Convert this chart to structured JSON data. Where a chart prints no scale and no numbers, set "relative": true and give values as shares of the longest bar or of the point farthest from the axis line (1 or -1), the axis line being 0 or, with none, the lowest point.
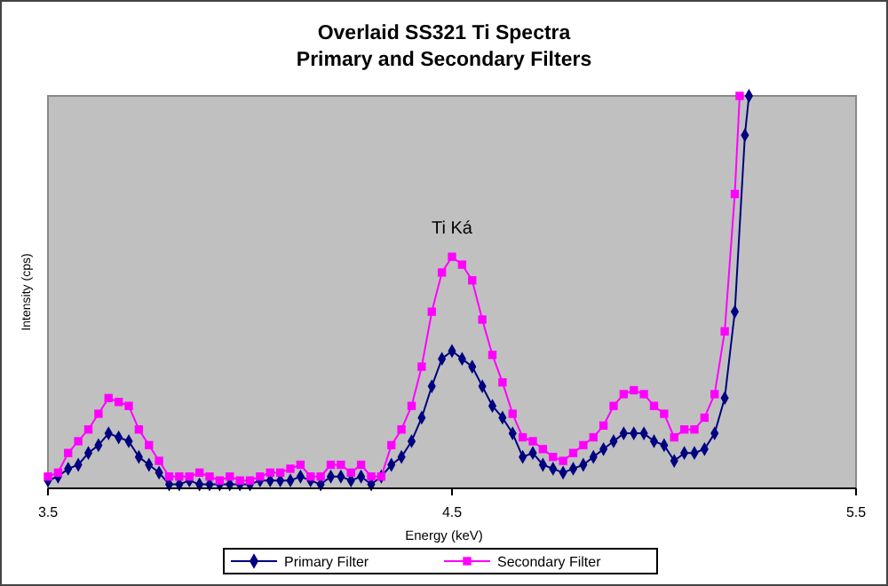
{
  "chart_data": {
    "type": "line",
    "title": "Overlaid SS321 Ti Spectra",
    "subtitle": "Primary and Secondary Filters",
    "xlabel": "Energy (keV)",
    "ylabel": "Intensity (cps)",
    "relative": true,
    "xlim": [
      3.5,
      5.5
    ],
    "xticks": [
      3.5,
      4.5,
      5.5
    ],
    "legend": "bottom",
    "line_style": "solid",
    "annotations": [
      "Ti Ká"
    ],
    "series": [
      {
        "name": "Primary Filter",
        "color": "#000080",
        "marker": "diamond",
        "x": [
          3.5,
          3.525,
          3.55,
          3.575,
          3.6,
          3.625,
          3.65,
          3.675,
          3.7,
          3.725,
          3.75,
          3.775,
          3.8,
          3.825,
          3.85,
          3.875,
          3.9,
          3.925,
          3.95,
          3.975,
          4.0,
          4.025,
          4.05,
          4.075,
          4.1,
          4.125,
          4.15,
          4.175,
          4.2,
          4.225,
          4.25,
          4.275,
          4.3,
          4.325,
          4.35,
          4.375,
          4.4,
          4.425,
          4.45,
          4.475,
          4.5,
          4.525,
          4.55,
          4.575,
          4.6,
          4.625,
          4.65,
          4.675,
          4.7,
          4.725,
          4.75,
          4.775,
          4.8,
          4.825,
          4.85,
          4.875,
          4.9,
          4.925,
          4.95,
          4.975,
          5.0,
          5.025,
          5.05,
          5.075,
          5.1,
          5.125,
          5.15,
          5.175,
          5.2,
          5.225,
          5.235
        ],
        "values": [
          0.02,
          0.03,
          0.05,
          0.06,
          0.09,
          0.11,
          0.14,
          0.13,
          0.12,
          0.08,
          0.06,
          0.04,
          0.01,
          0.01,
          0.02,
          0.01,
          0.01,
          0.01,
          0.01,
          0.01,
          0.01,
          0.02,
          0.02,
          0.02,
          0.02,
          0.03,
          0.02,
          0.01,
          0.03,
          0.03,
          0.02,
          0.03,
          0.01,
          0.03,
          0.06,
          0.08,
          0.12,
          0.18,
          0.26,
          0.33,
          0.35,
          0.33,
          0.31,
          0.26,
          0.21,
          0.18,
          0.14,
          0.08,
          0.09,
          0.06,
          0.05,
          0.04,
          0.05,
          0.06,
          0.08,
          0.1,
          0.12,
          0.14,
          0.14,
          0.14,
          0.12,
          0.11,
          0.07,
          0.09,
          0.09,
          0.1,
          0.14,
          0.23,
          0.45,
          0.9,
          1
        ]
      },
      {
        "name": "Secondary Filter",
        "color": "#ff00ff",
        "marker": "square",
        "x": [
          3.5,
          3.525,
          3.55,
          3.575,
          3.6,
          3.625,
          3.65,
          3.675,
          3.7,
          3.725,
          3.75,
          3.775,
          3.8,
          3.825,
          3.85,
          3.875,
          3.9,
          3.925,
          3.95,
          3.975,
          4.0,
          4.025,
          4.05,
          4.075,
          4.1,
          4.125,
          4.15,
          4.175,
          4.2,
          4.225,
          4.25,
          4.275,
          4.3,
          4.325,
          4.35,
          4.375,
          4.4,
          4.425,
          4.45,
          4.475,
          4.5,
          4.525,
          4.55,
          4.575,
          4.6,
          4.625,
          4.65,
          4.675,
          4.7,
          4.725,
          4.75,
          4.775,
          4.8,
          4.825,
          4.85,
          4.875,
          4.9,
          4.925,
          4.95,
          4.975,
          5.0,
          5.025,
          5.05,
          5.075,
          5.1,
          5.125,
          5.15,
          5.175,
          5.2,
          5.212
        ],
        "values": [
          0.03,
          0.04,
          0.09,
          0.12,
          0.15,
          0.19,
          0.23,
          0.22,
          0.21,
          0.15,
          0.11,
          0.07,
          0.03,
          0.03,
          0.03,
          0.04,
          0.03,
          0.02,
          0.03,
          0.02,
          0.02,
          0.03,
          0.04,
          0.04,
          0.05,
          0.06,
          0.03,
          0.03,
          0.06,
          0.06,
          0.04,
          0.06,
          0.03,
          0.03,
          0.11,
          0.15,
          0.21,
          0.31,
          0.45,
          0.55,
          0.59,
          0.57,
          0.53,
          0.43,
          0.34,
          0.27,
          0.19,
          0.13,
          0.12,
          0.1,
          0.08,
          0.07,
          0.09,
          0.11,
          0.13,
          0.16,
          0.21,
          0.24,
          0.25,
          0.24,
          0.21,
          0.19,
          0.13,
          0.15,
          0.15,
          0.18,
          0.24,
          0.4,
          0.75,
          1
        ]
      }
    ]
  }
}
